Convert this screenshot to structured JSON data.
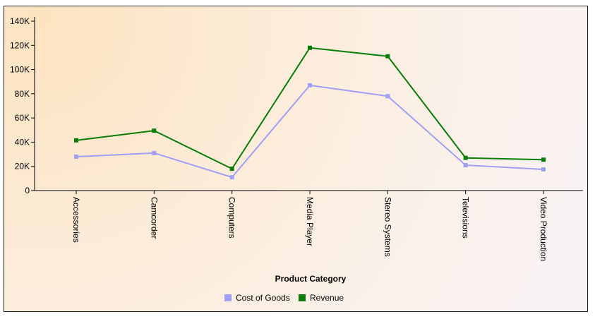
{
  "chart_data": {
    "type": "line",
    "title": "",
    "xlabel": "Product Category",
    "ylabel": "",
    "categories": [
      "Accessories",
      "Camcorder",
      "Computers",
      "Media Player",
      "Stereo Systems",
      "Televisions",
      "Video Production"
    ],
    "series": [
      {
        "name": "Cost of Goods",
        "color": "#9f9ff5",
        "values": [
          28000,
          31000,
          11000,
          87000,
          78000,
          21000,
          17500
        ]
      },
      {
        "name": "Revenue",
        "color": "#087d08",
        "values": [
          41500,
          49500,
          18000,
          118000,
          111000,
          27000,
          25500
        ]
      }
    ],
    "ylim": [
      0,
      140000
    ],
    "yticks": [
      {
        "value": 0,
        "label": "0"
      },
      {
        "value": 20000,
        "label": "20K"
      },
      {
        "value": 40000,
        "label": "40K"
      },
      {
        "value": 60000,
        "label": "60K"
      },
      {
        "value": 80000,
        "label": "80K"
      },
      {
        "value": 100000,
        "label": "100K"
      },
      {
        "value": 120000,
        "label": "120K"
      },
      {
        "value": 140000,
        "label": "140K"
      }
    ],
    "grid": false,
    "legend_position": "bottom"
  }
}
